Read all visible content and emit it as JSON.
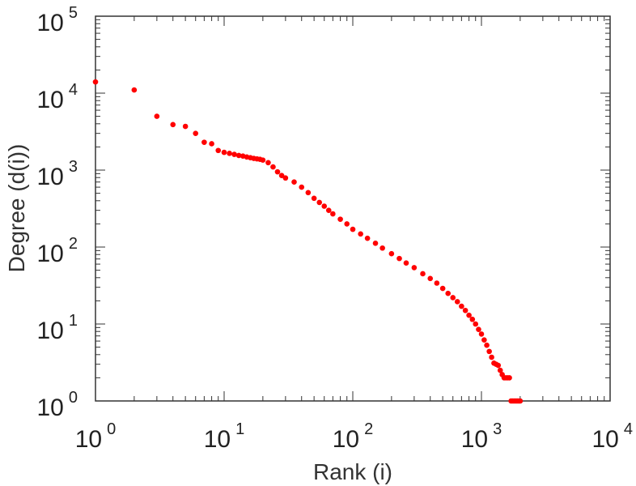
{
  "chart_data": {
    "type": "scatter",
    "title": "",
    "xlabel": "Rank (i)",
    "ylabel": "Degree (d(i))",
    "x_scale": "log",
    "y_scale": "log",
    "xlim": [
      1,
      10000
    ],
    "ylim": [
      1,
      100000
    ],
    "x_ticks": [
      {
        "base": "10",
        "exp": "0"
      },
      {
        "base": "10",
        "exp": "1"
      },
      {
        "base": "10",
        "exp": "2"
      },
      {
        "base": "10",
        "exp": "3"
      },
      {
        "base": "10",
        "exp": "4"
      }
    ],
    "y_ticks": [
      {
        "base": "10",
        "exp": "0"
      },
      {
        "base": "10",
        "exp": "1"
      },
      {
        "base": "10",
        "exp": "2"
      },
      {
        "base": "10",
        "exp": "3"
      },
      {
        "base": "10",
        "exp": "4"
      },
      {
        "base": "10",
        "exp": "5"
      }
    ],
    "grid": false,
    "marker_color": "#ff0000",
    "series": [
      {
        "points": [
          [
            1,
            14000
          ],
          [
            2,
            11000
          ],
          [
            3,
            5000
          ],
          [
            4,
            3900
          ],
          [
            5,
            3700
          ],
          [
            6,
            3000
          ],
          [
            7,
            2300
          ],
          [
            8,
            2200
          ],
          [
            9,
            1800
          ],
          [
            10,
            1700
          ],
          [
            11,
            1650
          ],
          [
            12,
            1600
          ],
          [
            13,
            1550
          ],
          [
            14,
            1520
          ],
          [
            15,
            1480
          ],
          [
            16,
            1450
          ],
          [
            17,
            1420
          ],
          [
            18,
            1400
          ],
          [
            19,
            1380
          ],
          [
            20,
            1350
          ],
          [
            22,
            1250
          ],
          [
            24,
            1100
          ],
          [
            26,
            950
          ],
          [
            28,
            850
          ],
          [
            30,
            790
          ],
          [
            35,
            700
          ],
          [
            40,
            600
          ],
          [
            45,
            510
          ],
          [
            50,
            430
          ],
          [
            55,
            380
          ],
          [
            60,
            340
          ],
          [
            65,
            300
          ],
          [
            70,
            270
          ],
          [
            80,
            230
          ],
          [
            90,
            200
          ],
          [
            100,
            170
          ],
          [
            115,
            148
          ],
          [
            130,
            130
          ],
          [
            150,
            112
          ],
          [
            170,
            97
          ],
          [
            200,
            82
          ],
          [
            230,
            71
          ],
          [
            260,
            62
          ],
          [
            300,
            54
          ],
          [
            350,
            45
          ],
          [
            400,
            39
          ],
          [
            450,
            34
          ],
          [
            500,
            29
          ],
          [
            550,
            25
          ],
          [
            600,
            22
          ],
          [
            650,
            19.5
          ],
          [
            700,
            17
          ],
          [
            750,
            15
          ],
          [
            800,
            13
          ],
          [
            850,
            11.5
          ],
          [
            900,
            10
          ],
          [
            950,
            8.5
          ],
          [
            1000,
            7.4
          ],
          [
            1050,
            6.2
          ],
          [
            1100,
            5.3
          ],
          [
            1150,
            4.4
          ],
          [
            1200,
            3.7
          ],
          [
            1250,
            3.1
          ],
          [
            1300,
            3
          ],
          [
            1350,
            2.9
          ],
          [
            1400,
            2.5
          ],
          [
            1450,
            2.2
          ],
          [
            1500,
            2
          ],
          [
            1550,
            2
          ],
          [
            1600,
            2
          ],
          [
            1650,
            2
          ],
          [
            1700,
            1
          ],
          [
            1750,
            1
          ],
          [
            1800,
            1
          ],
          [
            1850,
            1
          ],
          [
            1900,
            1
          ],
          [
            1950,
            1
          ],
          [
            2000,
            1
          ]
        ]
      }
    ]
  }
}
